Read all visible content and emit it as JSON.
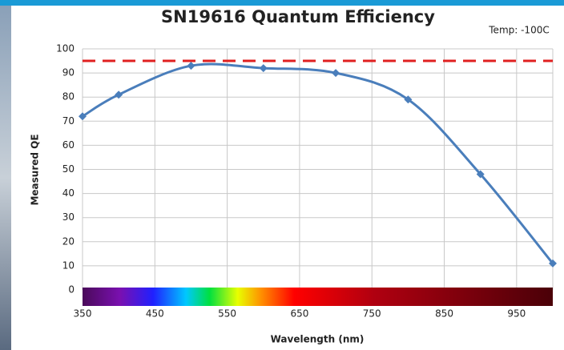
{
  "chart_data": {
    "type": "line",
    "title": "SN19616 Quantum Efficiency",
    "annotation": "Temp: -100C",
    "x_label": "Wavelength (nm)",
    "y_label": "Measured QE",
    "x": [
      350,
      400,
      500,
      600,
      700,
      800,
      900,
      1000
    ],
    "series": [
      {
        "color": "#4a7ebb",
        "values": [
          72,
          81,
          93,
          92,
          90,
          79,
          48,
          11
        ]
      }
    ],
    "reference_line": {
      "value": 95,
      "color": "#e02020"
    },
    "xlim": [
      350,
      1000
    ],
    "xticks": [
      350,
      450,
      550,
      650,
      750,
      850,
      950
    ],
    "ylim": [
      0,
      100
    ],
    "yticks": [
      0,
      10,
      20,
      30,
      40,
      50,
      60,
      70,
      80,
      90,
      100
    ],
    "grid": true
  }
}
